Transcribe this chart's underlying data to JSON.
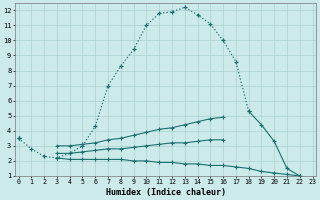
{
  "xlabel": "Humidex (Indice chaleur)",
  "background_color": "#cceaea",
  "grid_color": "#aad0d0",
  "line_color": "#1a7070",
  "x_values": [
    0,
    1,
    2,
    3,
    4,
    5,
    6,
    7,
    8,
    9,
    10,
    11,
    12,
    13,
    14,
    15,
    16,
    17,
    18,
    19,
    20,
    21,
    22,
    23
  ],
  "series1_dotted": [
    3.5,
    2.8,
    2.3,
    2.2,
    2.5,
    3.0,
    4.3,
    7.0,
    8.3,
    9.4,
    11.0,
    11.8,
    11.9,
    12.2,
    11.7,
    11.1,
    10.0,
    8.6,
    5.3,
    null,
    null,
    null,
    null,
    null
  ],
  "series2_solid": [
    3.5,
    null,
    null,
    3.0,
    3.0,
    3.1,
    3.2,
    3.4,
    3.5,
    3.7,
    3.9,
    4.1,
    4.2,
    4.4,
    4.6,
    4.8,
    4.9,
    null,
    5.3,
    4.4,
    3.3,
    1.5,
    1.0,
    null
  ],
  "series3_solid": [
    3.5,
    null,
    null,
    2.5,
    2.5,
    2.6,
    2.7,
    2.8,
    2.8,
    2.9,
    3.0,
    3.1,
    3.2,
    3.2,
    3.3,
    3.4,
    3.4,
    null,
    null,
    null,
    null,
    null,
    1.0,
    null
  ],
  "series4_solid": [
    3.5,
    null,
    null,
    2.2,
    2.1,
    2.1,
    2.1,
    2.1,
    2.1,
    2.0,
    2.0,
    1.9,
    1.9,
    1.8,
    1.8,
    1.7,
    1.7,
    1.6,
    1.5,
    1.3,
    1.2,
    1.1,
    1.0,
    null
  ],
  "xlim": [
    0,
    23
  ],
  "ylim": [
    1,
    12.5
  ],
  "yticks": [
    1,
    2,
    3,
    4,
    5,
    6,
    7,
    8,
    9,
    10,
    11,
    12
  ],
  "xticks": [
    0,
    1,
    2,
    3,
    4,
    5,
    6,
    7,
    8,
    9,
    10,
    11,
    12,
    13,
    14,
    15,
    16,
    17,
    18,
    19,
    20,
    21,
    22,
    23
  ]
}
